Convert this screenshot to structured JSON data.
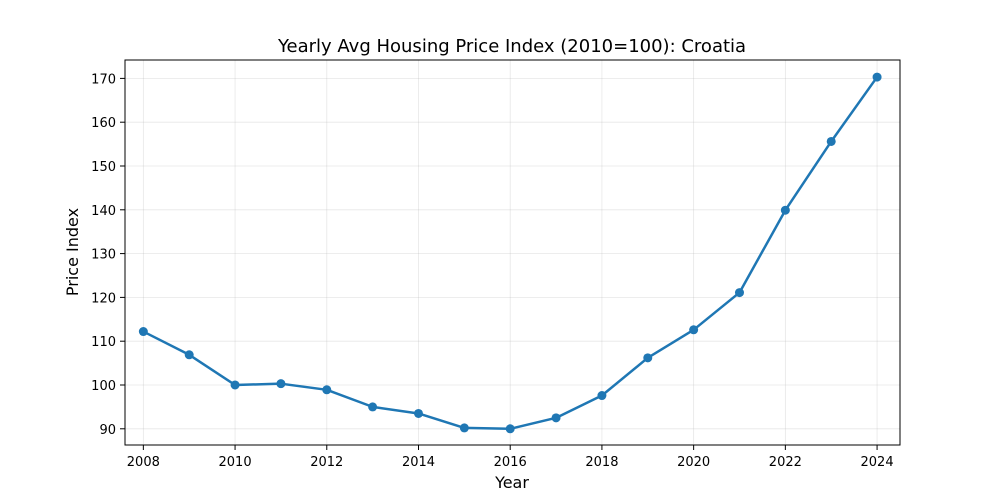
{
  "chart_data": {
    "type": "line",
    "title": "Yearly Avg Housing Price Index (2010=100): Croatia",
    "xlabel": "Year",
    "ylabel": "Price Index",
    "xlim": [
      2007.6,
      2024.5
    ],
    "ylim": [
      86.3,
      174.2
    ],
    "x_ticks": [
      2008,
      2010,
      2012,
      2014,
      2016,
      2018,
      2020,
      2022,
      2024
    ],
    "y_ticks": [
      90,
      100,
      110,
      120,
      130,
      140,
      150,
      160,
      170
    ],
    "grid": true,
    "series": [
      {
        "color": "#1f77b4",
        "marker": "circle",
        "x": [
          2008,
          2009,
          2010,
          2011,
          2012,
          2013,
          2014,
          2015,
          2016,
          2017,
          2018,
          2019,
          2020,
          2021,
          2022,
          2023,
          2024
        ],
        "y": [
          112.2,
          106.9,
          100.0,
          100.3,
          98.9,
          95.0,
          93.5,
          90.2,
          90.0,
          92.5,
          97.6,
          106.2,
          112.6,
          121.1,
          139.9,
          155.6,
          170.3
        ]
      }
    ]
  }
}
